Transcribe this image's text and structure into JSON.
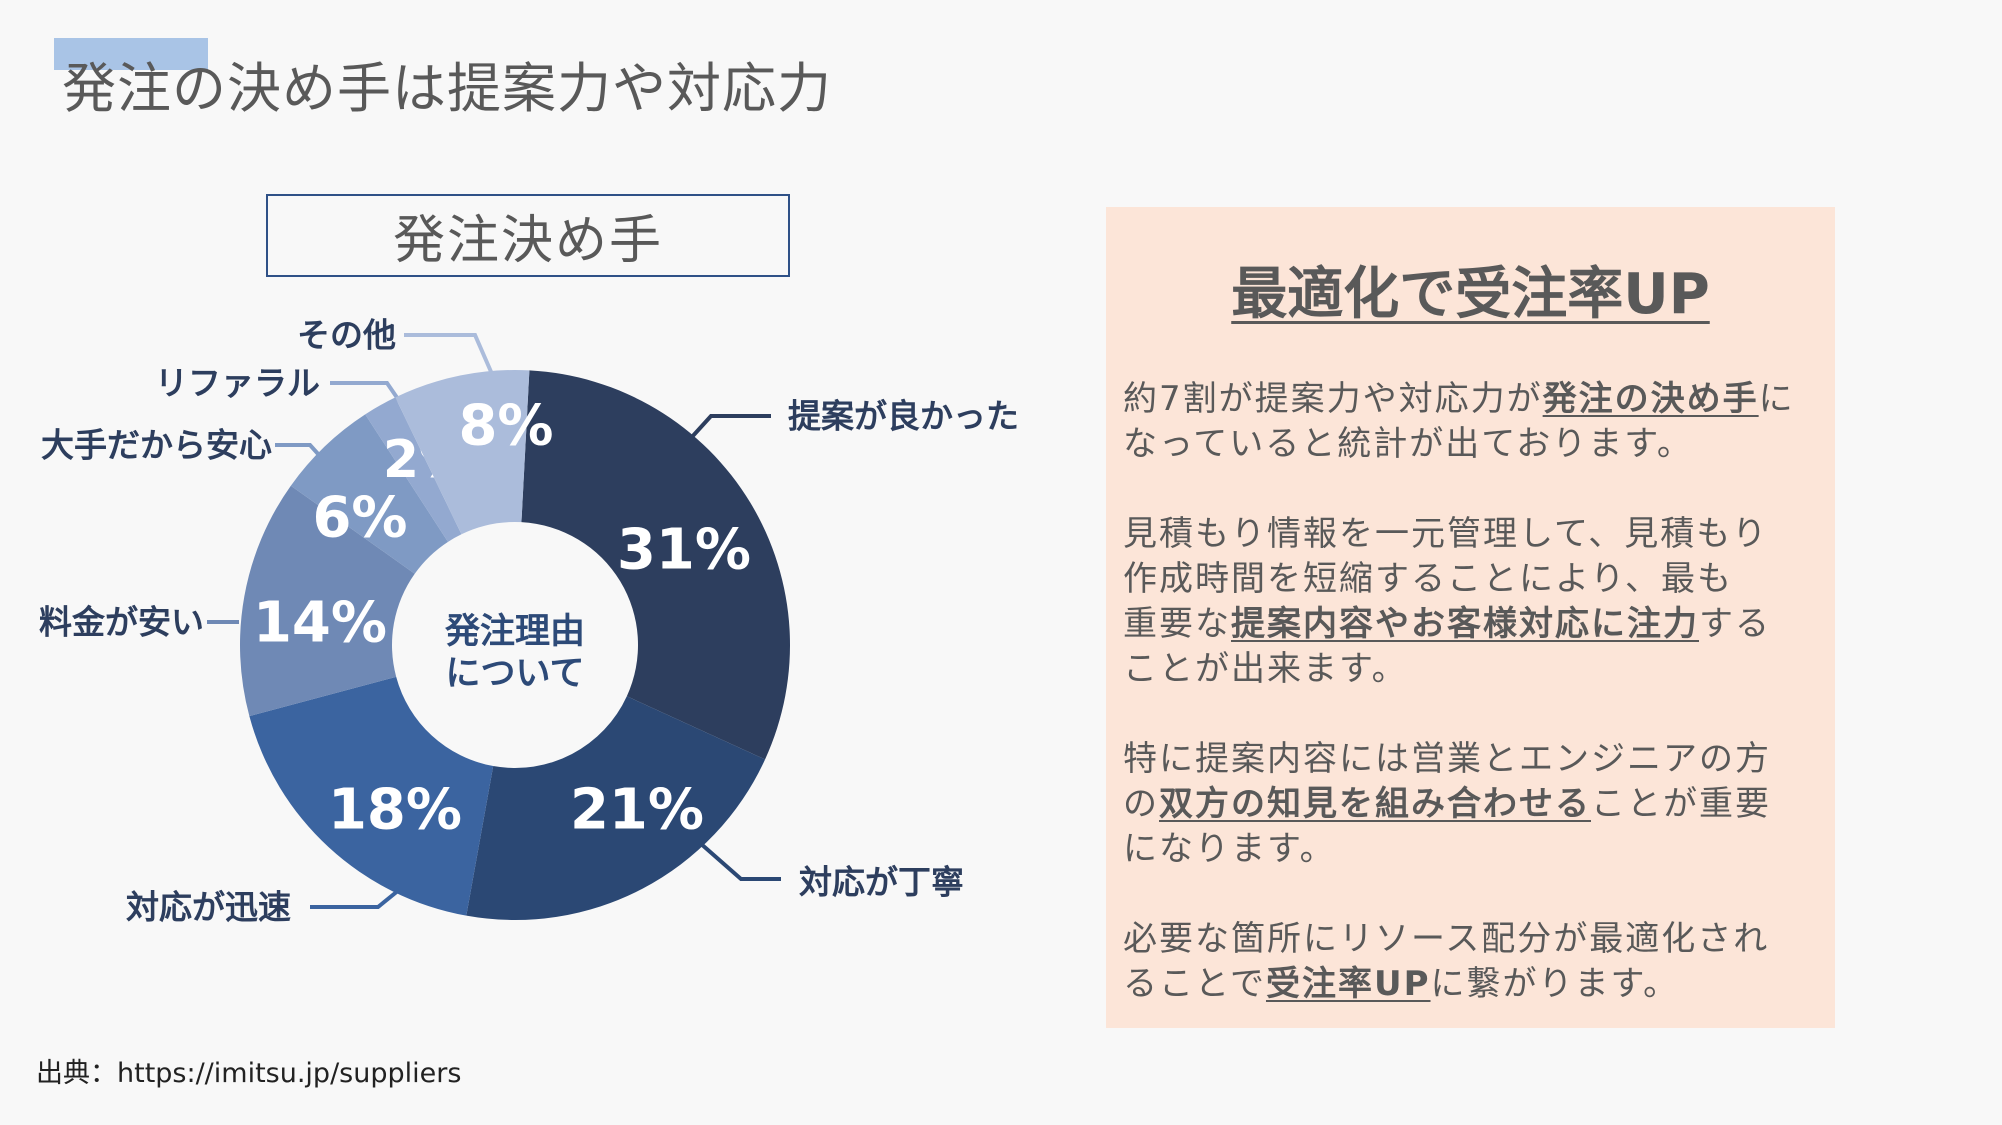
{
  "title": "発注の決め手は提案力や対応力",
  "colors": {
    "label": "#2d3e5e",
    "highlight": "#a9c4e6",
    "panel_bg": "#fce5d8",
    "text": "#595959"
  },
  "chart_data": {
    "type": "pie",
    "donut": true,
    "title": "発注決め手",
    "center_label": [
      "発注理由",
      "について"
    ],
    "categories": [
      "提案が良かった",
      "対応が丁寧",
      "対応が迅速",
      "料金が安い",
      "大手だから安心",
      "リファラル",
      "その他"
    ],
    "values": [
      31,
      21,
      18,
      14,
      6,
      2,
      8
    ],
    "value_labels": [
      "31%",
      "21%",
      "18%",
      "14%",
      "6%",
      "2%",
      "8%"
    ],
    "colors": [
      "#2d3e5e",
      "#2b4874",
      "#3b64a0",
      "#6f89b5",
      "#7f9ac4",
      "#93a9d0",
      "#abbcdb"
    ],
    "order": "clockwise"
  },
  "panel": {
    "heading": "最適化で受注率UP",
    "paragraphs": [
      [
        [
          {
            "t": "約7割が提案力や対応力が"
          },
          {
            "t": "発注の決め手",
            "b": true
          },
          {
            "t": "に"
          }
        ],
        [
          {
            "t": "なっていると統計が出ております。"
          }
        ]
      ],
      [
        [
          {
            "t": "見積もり情報を一元管理して、見積もり"
          }
        ],
        [
          {
            "t": "作成時間を短縮することにより、最も"
          }
        ],
        [
          {
            "t": "重要な"
          },
          {
            "t": "提案内容やお客様対応に注力",
            "b": true
          },
          {
            "t": "する"
          }
        ],
        [
          {
            "t": "ことが出来ます。"
          }
        ]
      ],
      [
        [
          {
            "t": "特に提案内容には営業とエンジニアの方"
          }
        ],
        [
          {
            "t": "の"
          },
          {
            "t": "双方の知見を組み合わせる",
            "b": true
          },
          {
            "t": "ことが重要"
          }
        ],
        [
          {
            "t": "になります。"
          }
        ]
      ],
      [
        [
          {
            "t": "必要な箇所にリソース配分が最適化され"
          }
        ],
        [
          {
            "t": "ることで"
          },
          {
            "t": "受注率UP",
            "b": true
          },
          {
            "t": "に繋がります。"
          }
        ]
      ]
    ]
  },
  "source": "出典：https://imitsu.jp/suppliers"
}
